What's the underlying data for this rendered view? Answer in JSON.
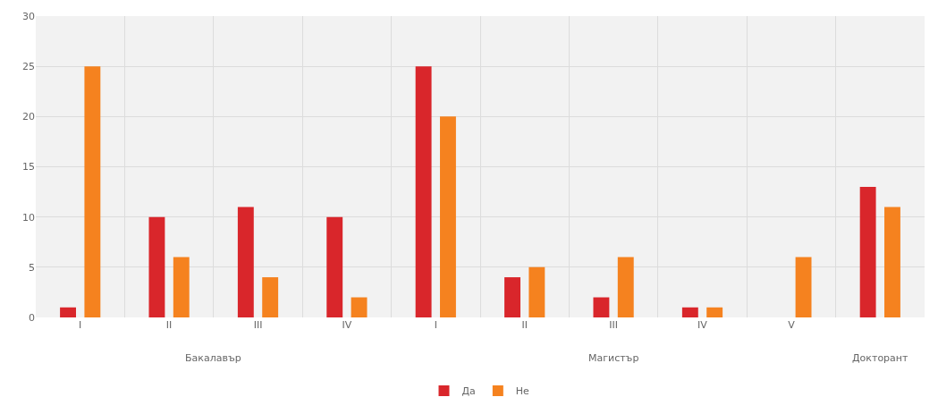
{
  "chart_data": {
    "type": "bar",
    "categories": [
      "I",
      "II",
      "III",
      "IV",
      "I",
      "II",
      "III",
      "IV",
      "V",
      null
    ],
    "series": [
      {
        "name": "Да",
        "color": "#d9262b",
        "values": [
          1,
          10,
          11,
          10,
          25,
          4,
          2,
          1,
          0,
          13
        ]
      },
      {
        "name": "Не",
        "color": "#f5821f",
        "values": [
          25,
          6,
          4,
          2,
          20,
          5,
          6,
          1,
          6,
          11
        ]
      }
    ],
    "annotations": [
      "Бакалавър",
      "Магистър",
      "Докторант"
    ],
    "ylim": [
      0,
      30
    ],
    "yticks": [
      0,
      5,
      10,
      15,
      20,
      25,
      30
    ],
    "grid": true,
    "legend": "bottom"
  }
}
